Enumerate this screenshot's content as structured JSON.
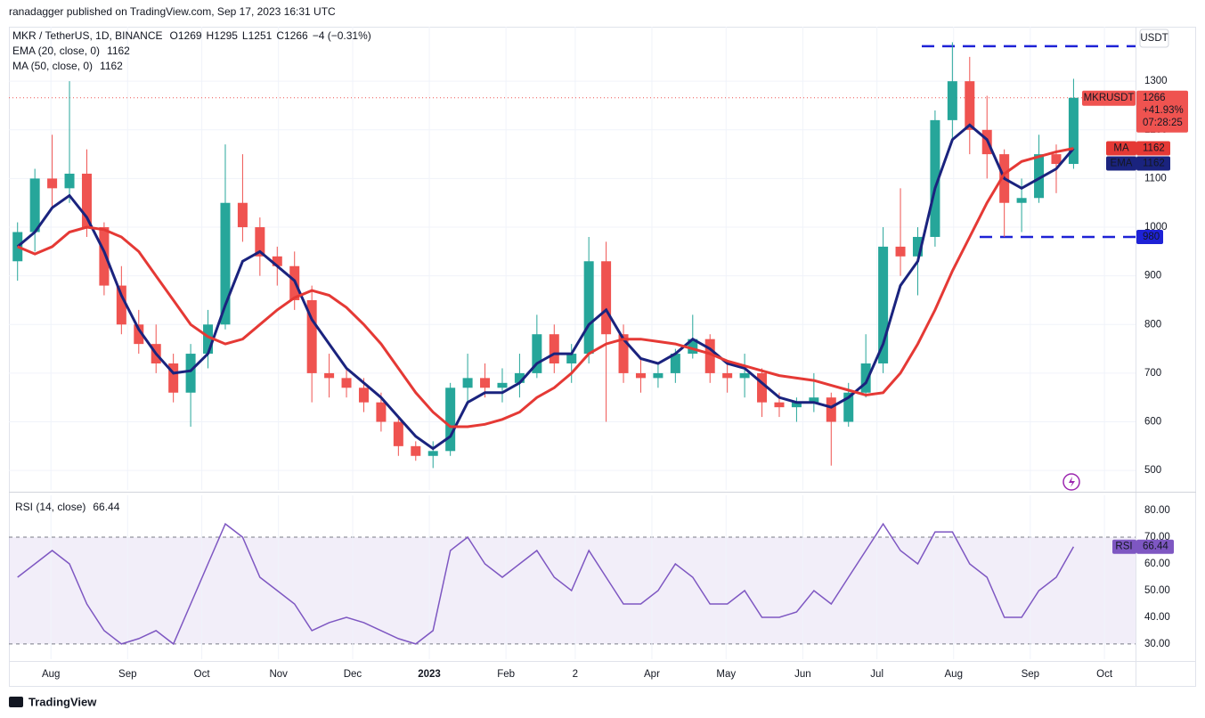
{
  "chart_data": {
    "type": "candlestick",
    "publisher": "ranadagger published on TradingView.com, Sep 17, 2023 16:31 UTC",
    "symbol_line": "MKR / TetherUS, 1D, BINANCE",
    "ohlc": [
      {
        "label": "O",
        "value": 1269
      },
      {
        "label": "H",
        "value": 1295
      },
      {
        "label": "L",
        "value": 1251
      },
      {
        "label": "C",
        "value": 1266
      }
    ],
    "change": "−4 (−0.31%)",
    "x": [
      3.5,
      10.5,
      17.5,
      24.5,
      31.5,
      38.5,
      45.5,
      52.5,
      59.5,
      66.5,
      73.5,
      80.5,
      87.5,
      94.5,
      101.5,
      108.5,
      115.5,
      122.5,
      129.5,
      136.5,
      143.5,
      150.5,
      157.5,
      164.5,
      171.5,
      178.5,
      185.5,
      192.5,
      199.5,
      206.5,
      213.5,
      220.5,
      227.5,
      234.5,
      241.5,
      248.5,
      255.5,
      262.5,
      269.5,
      276.5,
      283.5,
      290.5,
      297.5,
      304.5,
      311.5,
      318.5,
      325.5,
      332.5,
      339.5,
      346.5,
      353.5,
      360.5,
      367.5,
      374.5,
      381.5,
      388.5,
      395.5,
      402.5,
      409.5,
      416.5,
      423.5,
      430.5
    ],
    "open": [
      930,
      990,
      1100,
      1080,
      1110,
      1000,
      880,
      800,
      760,
      720,
      660,
      740,
      800,
      1050,
      1000,
      940,
      920,
      850,
      700,
      690,
      670,
      640,
      600,
      550,
      530,
      540,
      670,
      690,
      670,
      680,
      700,
      780,
      720,
      740,
      930,
      780,
      700,
      690,
      700,
      740,
      770,
      700,
      690,
      700,
      640,
      630,
      640,
      650,
      600,
      660,
      720,
      960,
      940,
      980,
      1220,
      1300,
      1200,
      1150,
      1050,
      1060,
      1150,
      1130
    ],
    "high": [
      1010,
      1120,
      1190,
      1300,
      1160,
      1010,
      920,
      830,
      800,
      740,
      760,
      830,
      1170,
      1150,
      1020,
      960,
      950,
      880,
      740,
      710,
      690,
      660,
      610,
      560,
      560,
      680,
      740,
      720,
      710,
      740,
      820,
      800,
      760,
      980,
      970,
      800,
      730,
      720,
      750,
      820,
      780,
      720,
      740,
      710,
      660,
      650,
      700,
      660,
      680,
      780,
      1000,
      1080,
      1000,
      1240,
      1380,
      1350,
      1270,
      1160,
      1100,
      1190,
      1170,
      1305
    ],
    "low": [
      890,
      950,
      1040,
      1050,
      980,
      860,
      780,
      740,
      700,
      640,
      590,
      710,
      790,
      970,
      900,
      880,
      830,
      640,
      650,
      650,
      620,
      580,
      530,
      520,
      505,
      530,
      640,
      650,
      640,
      650,
      690,
      700,
      680,
      720,
      600,
      680,
      660,
      670,
      680,
      730,
      680,
      660,
      650,
      610,
      610,
      600,
      620,
      510,
      590,
      650,
      700,
      900,
      860,
      960,
      1180,
      1150,
      1100,
      980,
      990,
      1050,
      1070,
      1120
    ],
    "close": [
      990,
      1100,
      1080,
      1110,
      1000,
      880,
      800,
      760,
      720,
      660,
      740,
      800,
      1050,
      1000,
      940,
      920,
      850,
      700,
      690,
      670,
      640,
      600,
      550,
      530,
      540,
      670,
      690,
      670,
      680,
      700,
      780,
      720,
      740,
      930,
      780,
      700,
      690,
      700,
      740,
      770,
      700,
      690,
      700,
      640,
      630,
      640,
      650,
      600,
      660,
      720,
      960,
      940,
      980,
      1220,
      1300,
      1200,
      1150,
      1050,
      1060,
      1150,
      1130,
      1266
    ],
    "up_color": "#26a69a",
    "down_color": "#ef5350",
    "series": [
      {
        "name": "EMA",
        "legend_label": "EMA (20, close, 0)",
        "color": "#1a237e",
        "values": [
          960,
          990,
          1040,
          1065,
          1020,
          950,
          860,
          790,
          740,
          700,
          705,
          740,
          840,
          930,
          950,
          920,
          890,
          810,
          760,
          710,
          680,
          650,
          610,
          570,
          545,
          570,
          640,
          660,
          660,
          680,
          720,
          740,
          740,
          800,
          830,
          770,
          730,
          720,
          740,
          770,
          750,
          720,
          710,
          680,
          650,
          640,
          640,
          630,
          650,
          680,
          760,
          880,
          930,
          1080,
          1180,
          1210,
          1180,
          1100,
          1080,
          1100,
          1120,
          1162
        ]
      },
      {
        "name": "MA",
        "legend_label": "MA (50, close, 0)",
        "color": "#e53935",
        "values": [
          960,
          945,
          960,
          990,
          1000,
          995,
          980,
          950,
          900,
          850,
          800,
          775,
          760,
          770,
          800,
          830,
          855,
          870,
          860,
          835,
          800,
          760,
          710,
          660,
          620,
          590,
          590,
          595,
          605,
          620,
          650,
          670,
          700,
          740,
          760,
          770,
          770,
          765,
          760,
          750,
          740,
          725,
          715,
          705,
          695,
          690,
          685,
          675,
          665,
          655,
          660,
          700,
          760,
          830,
          910,
          980,
          1050,
          1110,
          1135,
          1145,
          1155,
          1162
        ]
      }
    ],
    "xlim": [
      0,
      457
    ],
    "xticks": [
      {
        "value": 17,
        "label": "Aug"
      },
      {
        "value": 48,
        "label": "Sep"
      },
      {
        "value": 78,
        "label": "Oct"
      },
      {
        "value": 109,
        "label": "Nov"
      },
      {
        "value": 139,
        "label": "Dec"
      },
      {
        "value": 170,
        "label": "2023"
      },
      {
        "value": 201,
        "label": "Feb"
      },
      {
        "value": 229,
        "label": "2"
      },
      {
        "value": 260,
        "label": "Apr"
      },
      {
        "value": 290,
        "label": "May"
      },
      {
        "value": 321,
        "label": "Jun"
      },
      {
        "value": 351,
        "label": "Jul"
      },
      {
        "value": 382,
        "label": "Aug"
      },
      {
        "value": 413,
        "label": "Sep"
      },
      {
        "value": 443,
        "label": "Oct"
      }
    ],
    "ylim": [
      460,
      1412
    ],
    "yticks": [
      500,
      600,
      700,
      800,
      900,
      1000,
      1100,
      1200,
      1300
    ],
    "currency": "USDT",
    "levels": {
      "resistance": 1372,
      "support": 980
    },
    "last_tag": {
      "symbol": "MKRUSDT",
      "change": "+41.93%",
      "countdown": "07:28:25"
    },
    "rsi": {
      "legend_label": "RSI (14, close)",
      "name": "RSI",
      "color": "#7e57c2",
      "values": [
        55,
        60,
        65,
        60,
        45,
        35,
        30,
        32,
        35,
        30,
        45,
        60,
        75,
        70,
        55,
        50,
        45,
        35,
        38,
        40,
        38,
        35,
        32,
        30,
        35,
        65,
        70,
        60,
        55,
        60,
        65,
        55,
        50,
        65,
        55,
        45,
        45,
        50,
        60,
        55,
        45,
        45,
        50,
        40,
        40,
        42,
        50,
        45,
        55,
        65,
        75,
        65,
        60,
        72,
        72,
        60,
        55,
        40,
        40,
        50,
        55,
        66.44
      ],
      "ylim": [
        24.3,
        85.7
      ],
      "yticks": [
        {
          "value": 30,
          "label": "30.00"
        },
        {
          "value": 40,
          "label": "40.00"
        },
        {
          "value": 50,
          "label": "50.00"
        },
        {
          "value": 60,
          "label": "60.00"
        },
        {
          "value": 70,
          "label": "70.00"
        },
        {
          "value": 80,
          "label": "80.00"
        }
      ],
      "band": [
        30,
        70
      ]
    },
    "brand": "TradingView"
  }
}
